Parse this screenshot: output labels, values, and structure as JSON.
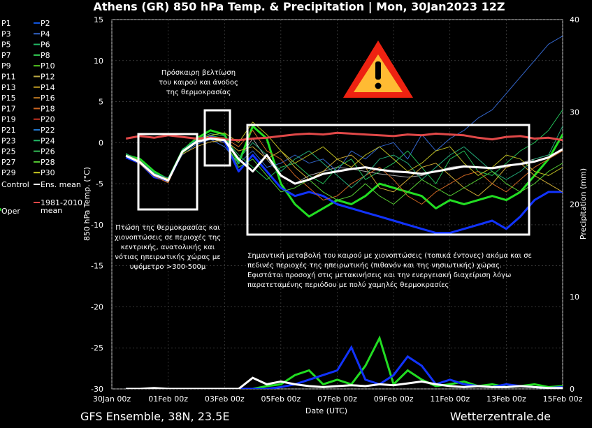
{
  "chart_data": {
    "type": "line",
    "title": "Athens  (GR)  850 hPa Temp. & Precipitation | Mon, 30Jan2023 12Z",
    "ylabel": "850 hPa Temp. (°C)",
    "y2label": "Precipitation (mm)",
    "xlabel": "Date (UTC)",
    "ylim": [
      -30,
      15
    ],
    "y2lim": [
      0,
      40
    ],
    "yticks": [
      "15",
      "10",
      "5",
      "0",
      "-5",
      "-10",
      "-15",
      "-20",
      "-25",
      "-30"
    ],
    "y2ticks": [
      "40",
      "30",
      "20",
      "10",
      "0"
    ],
    "xticks": [
      "30Jan 00z",
      "01Feb 00z",
      "03Feb 00z",
      "05Feb 00z",
      "07Feb 00z",
      "09Feb 00z",
      "11Feb 00z",
      "13Feb 00z",
      "15Feb 00z"
    ],
    "x_start_day": 0,
    "grid": true,
    "legend_position": "left",
    "x": [
      0.5,
      1.0,
      1.5,
      2.0,
      2.5,
      3.0,
      3.5,
      4.0,
      4.5,
      5.0,
      5.5,
      6.0,
      6.5,
      7.0,
      7.5,
      8.0,
      8.5,
      9.0,
      9.5,
      10.0,
      10.5,
      11.0,
      11.5,
      12.0,
      12.5,
      13.0,
      13.5,
      14.0,
      14.5,
      15.0,
      15.5,
      16.0
    ],
    "series": [
      {
        "name": "Control",
        "color": "#aaaaaa",
        "values": [
          -1.5,
          -2.5,
          -4.0,
          -4.8,
          -1.0,
          0.0,
          0.5,
          0.0,
          -2.0,
          0.5,
          -2.0,
          -4.0,
          -5.0,
          -4.0,
          -3.5,
          -3.0,
          -3.2,
          -3.5,
          -3.8,
          -4.0,
          -4.2,
          -4.0,
          -3.5,
          -3.0,
          -2.8,
          -3.0,
          -3.2,
          -3.0,
          -2.5,
          -2.0,
          -1.5,
          -1.0
        ]
      },
      {
        "name": "Oper",
        "color": "#22dd22",
        "values": [
          -1.5,
          -2.0,
          -3.5,
          -4.5,
          -1.0,
          0.5,
          1.5,
          1.0,
          -2.5,
          2.0,
          0.5,
          -5.0,
          -7.5,
          -9.0,
          -8.0,
          -7.0,
          -7.5,
          -6.5,
          -5.0,
          -5.5,
          -6.0,
          -6.5,
          -8.0,
          -7.0,
          -7.5,
          -7.0,
          -6.5,
          -7.0,
          -6.0,
          -4.0,
          -2.0,
          1.0
        ]
      },
      {
        "name": "P2",
        "color": "#1133ff",
        "values": [
          -1.8,
          -2.5,
          -4.2,
          -4.6,
          -1.2,
          0.2,
          0.8,
          0.2,
          -3.5,
          -1.5,
          -3.5,
          -5.5,
          -6.5,
          -6.0,
          -6.5,
          -7.5,
          -8.0,
          -8.5,
          -9.0,
          -9.5,
          -10.0,
          -10.5,
          -11.0,
          -11.0,
          -10.5,
          -10.0,
          -9.5,
          -10.5,
          -9.0,
          -7.0,
          -6.0,
          -6.0
        ]
      },
      {
        "name": "P1",
        "color": "#3366cc",
        "values": [
          -1.6,
          -2.2,
          -3.8,
          -4.4,
          -1.5,
          -0.2,
          0.4,
          -0.5,
          -2.5,
          -1.0,
          -3.0,
          -2.5,
          -1.5,
          -2.5,
          -2.0,
          -3.5,
          -1.0,
          -2.0,
          -0.5,
          0.0,
          -2.0,
          1.0,
          -1.0,
          0.5,
          1.5,
          3.0,
          4.0,
          6.0,
          8.0,
          10.0,
          12.0,
          13.0
        ]
      },
      {
        "name": "P6",
        "color": "#22bb55",
        "values": [
          -1.4,
          -2.1,
          -3.6,
          -4.7,
          -0.8,
          0.3,
          0.9,
          0.5,
          -1.5,
          -3.0,
          -4.5,
          -3.0,
          -2.5,
          -4.0,
          -5.0,
          -3.0,
          -2.0,
          -4.5,
          -3.5,
          -2.5,
          -1.0,
          -3.0,
          -5.0,
          -2.0,
          -1.0,
          -3.5,
          -4.0,
          -2.5,
          -1.0,
          0.0,
          1.5,
          4.0
        ]
      },
      {
        "name": "P13",
        "color": "#ccaa33",
        "values": [
          -1.7,
          -2.4,
          -3.9,
          -4.5,
          -1.4,
          -0.5,
          0.1,
          0.3,
          -1.0,
          -0.5,
          -2.0,
          -1.0,
          -3.0,
          -4.5,
          -3.5,
          -2.0,
          -1.5,
          -3.0,
          -5.5,
          -6.0,
          -4.5,
          -3.0,
          -2.5,
          -4.0,
          -5.5,
          -6.5,
          -5.0,
          -3.0,
          -2.5,
          -4.0,
          -5.0,
          -6.0
        ]
      },
      {
        "name": "P18",
        "color": "#cc6622",
        "values": [
          -1.5,
          -2.6,
          -4.1,
          -4.9,
          -1.1,
          0.1,
          0.7,
          0.6,
          -0.5,
          1.5,
          -1.0,
          -2.0,
          -4.0,
          -5.5,
          -7.0,
          -6.5,
          -5.0,
          -4.0,
          -3.0,
          -4.5,
          -6.5,
          -7.5,
          -6.0,
          -5.0,
          -4.0,
          -3.5,
          -5.0,
          -6.0,
          -4.5,
          -3.0,
          -2.0,
          -1.0
        ]
      },
      {
        "name": "P23",
        "color": "#22aa77",
        "values": [
          -1.3,
          -2.3,
          -3.7,
          -4.3,
          -0.9,
          0.4,
          1.1,
          0.8,
          -2.0,
          0.0,
          -1.5,
          -3.5,
          -2.0,
          -1.0,
          -2.5,
          -4.0,
          -5.5,
          -4.0,
          -2.0,
          -1.5,
          -2.5,
          -4.5,
          -3.0,
          -1.5,
          -0.5,
          -2.0,
          -3.5,
          -4.5,
          -3.5,
          -2.0,
          -1.5,
          2.0
        ]
      },
      {
        "name": "P27",
        "color": "#55cc33",
        "values": [
          -1.6,
          -2.5,
          -4.0,
          -4.6,
          -1.3,
          0.0,
          0.6,
          0.4,
          -3.0,
          -2.0,
          -4.0,
          -6.0,
          -5.5,
          -4.5,
          -6.0,
          -7.0,
          -6.5,
          -5.0,
          -6.5,
          -7.5,
          -6.0,
          -4.5,
          -5.5,
          -6.5,
          -5.5,
          -4.5,
          -3.5,
          -5.0,
          -6.0,
          -5.0,
          -3.5,
          -2.5
        ]
      },
      {
        "name": "P30",
        "color": "#bbbb22",
        "values": [
          -1.5,
          -2.2,
          -3.9,
          -4.4,
          -1.0,
          0.2,
          0.9,
          1.2,
          0.0,
          2.5,
          1.0,
          -1.0,
          -2.5,
          -1.5,
          -0.5,
          -2.0,
          -3.0,
          -1.5,
          -0.5,
          -2.0,
          -3.5,
          -2.5,
          -1.0,
          -0.5,
          -2.5,
          -4.0,
          -3.0,
          -1.5,
          -2.0,
          -3.5,
          -4.0,
          -3.0
        ]
      },
      {
        "name": "1981-2010 mean",
        "color": "#e04848",
        "values": [
          0.5,
          0.8,
          0.6,
          0.9,
          0.7,
          0.5,
          0.6,
          0.4,
          0.3,
          0.5,
          0.6,
          0.8,
          1.0,
          1.1,
          1.0,
          1.2,
          1.1,
          1.0,
          0.9,
          0.8,
          1.0,
          0.9,
          1.1,
          1.0,
          0.9,
          0.6,
          0.4,
          0.7,
          0.8,
          0.5,
          0.6,
          0.3
        ]
      },
      {
        "name": "Ens. mean",
        "color": "#ffffff",
        "values": [
          -1.6,
          -2.4,
          -3.9,
          -4.6,
          -1.1,
          0.1,
          0.5,
          0.3,
          -2.0,
          -3.5,
          -1.5,
          -4.0,
          -5.0,
          -4.5,
          -3.8,
          -3.5,
          -3.2,
          -3.0,
          -3.3,
          -3.5,
          -3.6,
          -3.8,
          -3.5,
          -3.2,
          -2.9,
          -3.0,
          -3.1,
          -2.8,
          -2.6,
          -2.3,
          -1.8,
          -0.8
        ]
      }
    ],
    "precip_series": [
      {
        "name": "Oper",
        "color": "#22dd22",
        "values": [
          0,
          0,
          0,
          0,
          0,
          0,
          0,
          0,
          0,
          0,
          0.3,
          0.5,
          1.5,
          2.0,
          0.5,
          1.0,
          0.5,
          2.5,
          5.5,
          0.5,
          2.0,
          1.0,
          0.3,
          0.5,
          0.8,
          0.3,
          0.5,
          0.2,
          0.3,
          0.5,
          0.2,
          0.3
        ]
      },
      {
        "name": "P2",
        "color": "#1133ff",
        "values": [
          0,
          0,
          0,
          0,
          0,
          0,
          0,
          0,
          0,
          0,
          0,
          0.2,
          0.5,
          1.0,
          1.5,
          2.0,
          4.5,
          1.0,
          0.5,
          1.5,
          3.5,
          2.5,
          0.5,
          1.0,
          0.5,
          0.3,
          0.2,
          0.5,
          0.3,
          0.2,
          0.1,
          0.2
        ]
      },
      {
        "name": "Ens. mean",
        "color": "#ffffff",
        "values": [
          0,
          0,
          0.1,
          0,
          0,
          0,
          0,
          0,
          0,
          1.2,
          0.5,
          0.8,
          0.5,
          0.3,
          0.2,
          0.3,
          0.4,
          0.3,
          0.5,
          0.4,
          0.6,
          0.8,
          0.5,
          0.3,
          0.2,
          0.3,
          0.2,
          0.2,
          0.3,
          0.2,
          0.1,
          0.1
        ]
      }
    ]
  },
  "legend": {
    "items": [
      {
        "label": "P1",
        "color": "#3355aa"
      },
      {
        "label": "P2",
        "color": "#1155dd"
      },
      {
        "label": "P3",
        "color": "#22aa44"
      },
      {
        "label": "P4",
        "color": "#3366cc"
      },
      {
        "label": "P5",
        "color": "#33aa55"
      },
      {
        "label": "P6",
        "color": "#22bb66"
      },
      {
        "label": "P7",
        "color": "#22aa55"
      },
      {
        "label": "P8",
        "color": "#33cc55"
      },
      {
        "label": "P9",
        "color": "#44bb33"
      },
      {
        "label": "P10",
        "color": "#55cc22"
      },
      {
        "label": "P11",
        "color": "#aa9933"
      },
      {
        "label": "P12",
        "color": "#bbaa44"
      },
      {
        "label": "P13",
        "color": "#ccaa33"
      },
      {
        "label": "P14",
        "color": "#bb9922"
      },
      {
        "label": "P15",
        "color": "#cc7733"
      },
      {
        "label": "P16",
        "color": "#bb7722"
      },
      {
        "label": "P17",
        "color": "#cc6633"
      },
      {
        "label": "P18",
        "color": "#cc6622"
      },
      {
        "label": "P19",
        "color": "#bb4422"
      },
      {
        "label": "P20",
        "color": "#cc3322"
      },
      {
        "label": "P21",
        "color": "#2266aa"
      },
      {
        "label": "P22",
        "color": "#2277cc"
      },
      {
        "label": "P23",
        "color": "#22aa77"
      },
      {
        "label": "P24",
        "color": "#22bb66"
      },
      {
        "label": "P25",
        "color": "#33aa66"
      },
      {
        "label": "P26",
        "color": "#33bb55"
      },
      {
        "label": "P27",
        "color": "#44bb44"
      },
      {
        "label": "P28",
        "color": "#55cc33"
      },
      {
        "label": "P29",
        "color": "#aaaa22"
      },
      {
        "label": "P30",
        "color": "#cccc22"
      }
    ],
    "control": {
      "label": "Control",
      "color": "#aaaaaa"
    },
    "ens_mean": {
      "label": "Ens. mean",
      "color": "#ffffff"
    },
    "oper": {
      "label": "Oper",
      "color": "#22dd22"
    },
    "climate": {
      "label_line1": "1981-2010",
      "label_line2": "mean",
      "color": "#e04848"
    }
  },
  "annotations": {
    "improvement": [
      "Πρόσκαιρη βελτίωση",
      "του καιρού και άνοδος",
      "της θερμοκρασίας"
    ],
    "drop": [
      "Πτώση της θερμοκρασίας και",
      "χιονοπτώσεις σε περιοχές της",
      "κεντρικής, ανατολικής και",
      "νότιας ηπειρωτικής χώρας με",
      "υψόμετρο >300-500μ"
    ],
    "change": [
      "Σημαντική μεταβολή του καιρού με χιονοπτώσεις (τοπικά έντονες) ακόμα και σε",
      "πεδινές περιοχές της ηπειρωτικής (πιθανόν και της νησιωτικής) χώρας.",
      "Εφιστάται προσοχή στις μετακινήσεις και την ενεργειακή διαχείριση λόγω",
      "παρατεταμένης περιόδου με πολύ χαμηλές θερμοκρασίες"
    ],
    "warning_icon": "warning-triangle-icon",
    "warning_colors": {
      "outer": "#ee2211",
      "inner": "#ffbb33",
      "mark": "#000000"
    }
  },
  "footer": {
    "left": "GFS Ensemble, 38N, 23.5E",
    "right": "Wetterzentrale.de"
  }
}
